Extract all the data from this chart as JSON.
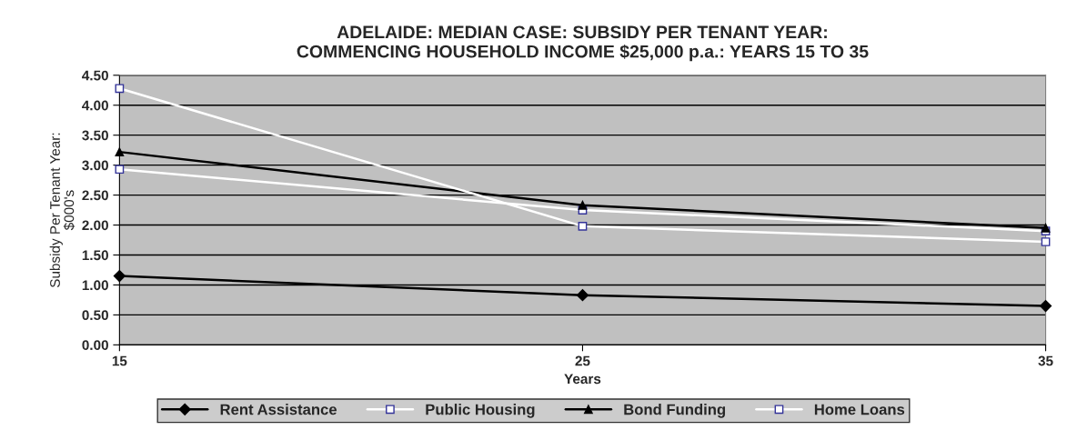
{
  "chart_data": {
    "type": "line",
    "title": "ADELAIDE: MEDIAN CASE: SUBSIDY PER TENANT YEAR:\nCOMMENCING HOUSEHOLD INCOME $25,000 p.a.: YEARS 15 TO 35",
    "xlabel": "Years",
    "ylabel": "Subsidy Per Tenant Year:\n$000's",
    "x": [
      15,
      25,
      35
    ],
    "series": [
      {
        "name": "Rent Assistance",
        "color": "#000000",
        "marker": "diamond",
        "values": [
          1.15,
          0.83,
          0.65
        ]
      },
      {
        "name": "Public Housing",
        "color": "#ffffff",
        "marker": "square",
        "values": [
          2.93,
          2.25,
          1.9
        ]
      },
      {
        "name": "Bond Funding",
        "color": "#000000",
        "marker": "triangle",
        "values": [
          3.22,
          2.33,
          1.95
        ]
      },
      {
        "name": "Home Loans",
        "color": "#ffffff",
        "marker": "square",
        "values": [
          4.28,
          1.98,
          1.72
        ]
      }
    ],
    "xlim": [
      15,
      35
    ],
    "xticks": [
      15,
      25,
      35
    ],
    "ylim": [
      0,
      4.5
    ],
    "yticks": [
      {
        "value": 0,
        "label": "0.00"
      },
      {
        "value": 0.5,
        "label": "0.50"
      },
      {
        "value": 1,
        "label": "1.00"
      },
      {
        "value": 1.5,
        "label": "1.50"
      },
      {
        "value": 2,
        "label": "2.00"
      },
      {
        "value": 2.5,
        "label": "2.50"
      },
      {
        "value": 3,
        "label": "3.00"
      },
      {
        "value": 3.5,
        "label": "3.50"
      },
      {
        "value": 4,
        "label": "4.00"
      },
      {
        "value": 4.5,
        "label": "4.50"
      }
    ],
    "grid": "y",
    "legend": "bottom"
  }
}
